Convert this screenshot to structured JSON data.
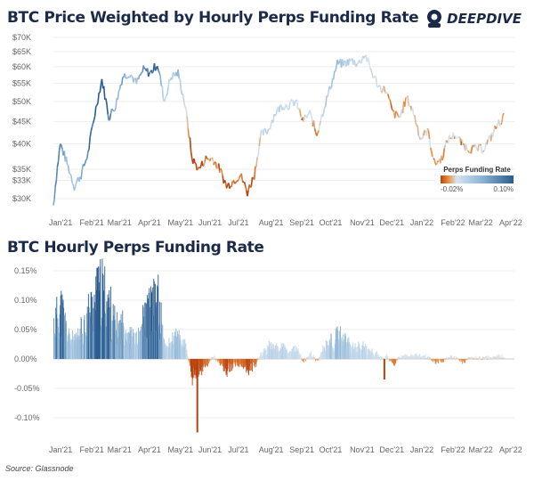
{
  "title1": "BTC Price Weighted by Hourly Perps Funding Rate",
  "title2": "BTC Hourly Perps Funding Rate",
  "logo": "DEEPDIVE",
  "source": "Source: Glassnode",
  "legend": {
    "title": "Perps Funding Rate",
    "min_label": "-0.02%",
    "max_label": "0.10%"
  },
  "colors": {
    "negative": "#b8430f",
    "neutral": "#d6e4ef",
    "positive": "#2b5c8f"
  },
  "chart_data": [
    {
      "type": "line",
      "title": "BTC Price Weighted by Hourly Perps Funding Rate",
      "scale": "log",
      "y_ticks": [
        "$70K",
        "$65K",
        "$60K",
        "$55K",
        "$50K",
        "$45K",
        "$40K",
        "$35K",
        "$33K",
        "$30K"
      ],
      "y_tick_values": [
        70000,
        65000,
        60000,
        55000,
        50000,
        45000,
        40000,
        35000,
        33000,
        30000
      ],
      "x_ticks": [
        "Jan'21",
        "Feb'21",
        "Mar'21",
        "Apr'21",
        "May'21",
        "Jun'21",
        "Jul'21",
        "Aug'21",
        "Sep'21",
        "Oct'21",
        "Nov'21",
        "Dec'21",
        "Jan'22",
        "Feb'22",
        "Mar'22",
        "Apr'22"
      ],
      "x_note": "weekly samples from 2021-01-01 to 2022-04-01",
      "price": [
        29000,
        40000,
        36000,
        32000,
        34000,
        38000,
        47000,
        56000,
        46000,
        49000,
        57000,
        58000,
        55000,
        59000,
        58000,
        61000,
        50000,
        57000,
        58000,
        49000,
        37000,
        35000,
        37000,
        37000,
        35000,
        32000,
        33000,
        34000,
        31000,
        34000,
        42000,
        43000,
        47000,
        49000,
        49000,
        50000,
        45000,
        47000,
        42000,
        48000,
        54000,
        61000,
        61000,
        62000,
        61000,
        64000,
        58000,
        54000,
        53000,
        47000,
        46000,
        51000,
        47000,
        41000,
        43000,
        36000,
        37000,
        41000,
        42000,
        40000,
        39000,
        39000,
        39000,
        41000,
        44000,
        46000
      ],
      "color_by": "funding_rate"
    },
    {
      "type": "bar",
      "title": "BTC Hourly Perps Funding Rate",
      "y_ticks": [
        "0.15%",
        "0.10%",
        "0.05%",
        "0.00%",
        "-0.05%",
        "-0.10%"
      ],
      "y_tick_values": [
        0.15,
        0.1,
        0.05,
        0,
        -0.05,
        -0.1
      ],
      "x_ticks": [
        "Jan'21",
        "Feb'21",
        "Mar'21",
        "Apr'21",
        "May'21",
        "Jun'21",
        "Jul'21",
        "Aug'21",
        "Sep'21",
        "Oct'21",
        "Nov'21",
        "Dec'21",
        "Jan'22",
        "Feb'22",
        "Mar'22",
        "Apr'22"
      ],
      "funding_rate_pct": [
        0.06,
        0.09,
        0.04,
        0.03,
        0.05,
        0.08,
        0.1,
        0.12,
        0.09,
        0.05,
        0.06,
        0.04,
        0.03,
        0.07,
        0.09,
        0.1,
        0.02,
        0.03,
        0.04,
        0.02,
        -0.03,
        -0.02,
        -0.01,
        0.005,
        -0.01,
        -0.02,
        -0.01,
        -0.01,
        -0.02,
        -0.01,
        0.01,
        0.02,
        0.02,
        0.02,
        0.01,
        0.02,
        -0.005,
        0.01,
        -0.005,
        0.02,
        0.03,
        0.04,
        0.03,
        0.02,
        0.02,
        0.02,
        0.01,
        0.005,
        0.005,
        -0.01,
        0.005,
        0.005,
        0.005,
        0.005,
        0.003,
        -0.005,
        -0.003,
        0.003,
        0.002,
        -0.005,
        0.002,
        0.002,
        0.002,
        0.003,
        0.004,
        0.003
      ],
      "annotations": {
        "min": -0.125,
        "max": 0.155
      }
    }
  ]
}
